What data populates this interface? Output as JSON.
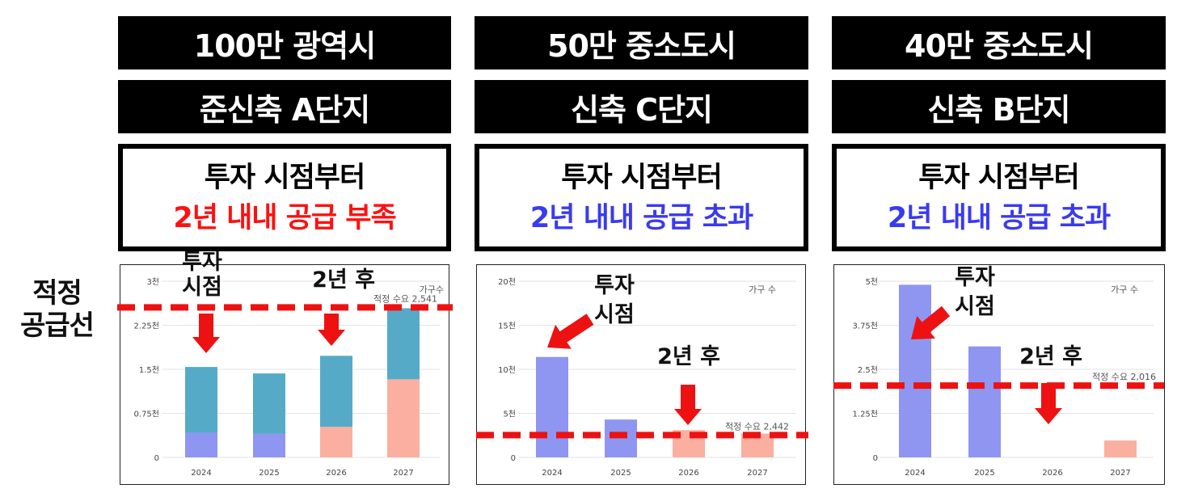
{
  "panels": [
    {
      "city": "100만 광역시",
      "complex": "준신축 A단지",
      "msg_line1": "투자 시점부터",
      "msg_line2": "2년 내내 공급 부족",
      "msg_color": "#ff1010"
    },
    {
      "city": "50만 중소도시",
      "complex": "신축 C단지",
      "msg_line1": "투자 시점부터",
      "msg_line2": "2년 내내 공급 초과",
      "msg_color": "#3a3af0"
    },
    {
      "city": "40만 중소도시",
      "complex": "신축 B단지",
      "msg_line1": "투자 시점부터",
      "msg_line2": "2년 내내 공급 초과",
      "msg_color": "#3a3af0"
    }
  ],
  "side_label": {
    "line1": "적정",
    "line2": "공급선"
  },
  "chart_data": [
    {
      "type": "bar",
      "stacked": true,
      "categories": [
        "2024",
        "2025",
        "2026",
        "2027"
      ],
      "ylim": [
        0,
        3000
      ],
      "yticks": [
        0,
        750,
        1500,
        2250,
        3000
      ],
      "ytick_labels": [
        "0",
        "0.75천",
        "1.5천",
        "2.25천",
        "3천"
      ],
      "series": [
        {
          "color": "#8e96f2",
          "values": [
            420,
            400,
            0,
            0
          ]
        },
        {
          "color": "#fbafa1",
          "values": [
            0,
            0,
            520,
            1330
          ]
        },
        {
          "color": "#55abc7",
          "values": [
            1120,
            1030,
            1210,
            1210
          ]
        }
      ],
      "legend": "가구수",
      "reference": {
        "value": 2541,
        "label": "적정 수요 2,541",
        "color": "#ee1111"
      },
      "annotations": [
        {
          "text1": "투자",
          "text2": "시점",
          "at": "2024"
        },
        {
          "text1": "2년 후",
          "text2": "",
          "at": "2026"
        }
      ]
    },
    {
      "type": "bar",
      "categories": [
        "2024",
        "2025",
        "2026",
        "2027"
      ],
      "ylim": [
        0,
        20000
      ],
      "yticks": [
        0,
        5000,
        10000,
        15000,
        20000
      ],
      "ytick_labels": [
        "0",
        "5천",
        "10천",
        "15천",
        "20천"
      ],
      "series": [
        {
          "color": "#8e96f2",
          "values": [
            11400,
            4300,
            0,
            0
          ]
        },
        {
          "color": "#fbafa1",
          "values": [
            0,
            0,
            3100,
            2700
          ]
        }
      ],
      "legend": "가구 수",
      "reference": {
        "value": 2442,
        "label": "적정 수요 2,442",
        "color": "#ee1111"
      },
      "annotations": [
        {
          "text1": "투자",
          "text2": "시점",
          "at": "2024"
        },
        {
          "text1": "2년 후",
          "text2": "",
          "at": "2026"
        }
      ]
    },
    {
      "type": "bar",
      "categories": [
        "2024",
        "2025",
        "2026",
        "2027"
      ],
      "ylim": [
        0,
        5000
      ],
      "yticks": [
        0,
        1250,
        2500,
        3750,
        5000
      ],
      "ytick_labels": [
        "0",
        "1.25천",
        "2.5천",
        "3.75천",
        "5천"
      ],
      "series": [
        {
          "color": "#8e96f2",
          "values": [
            4900,
            3150,
            0,
            0
          ]
        },
        {
          "color": "#fbafa1",
          "values": [
            0,
            0,
            0,
            480
          ]
        }
      ],
      "legend": "가구 수",
      "reference": {
        "value": 2016,
        "label": "적정 수요 2,016",
        "color": "#ee1111"
      },
      "annotations": [
        {
          "text1": "투자",
          "text2": "시점",
          "at": "2024"
        },
        {
          "text1": "2년 후",
          "text2": "",
          "at": "2026"
        }
      ]
    }
  ]
}
